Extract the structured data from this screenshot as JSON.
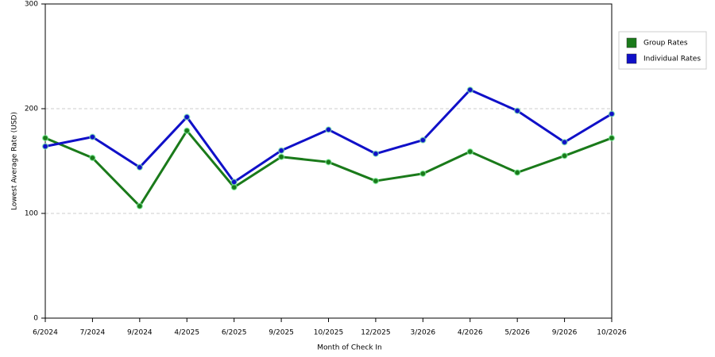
{
  "chart_data": {
    "type": "line",
    "x_label": "Month of Check In",
    "y_label": "Lowest Average Rate (USD)",
    "categories": [
      "6/2024",
      "7/2024",
      "9/2024",
      "4/2025",
      "6/2025",
      "9/2025",
      "10/2025",
      "12/2025",
      "3/2026",
      "4/2026",
      "5/2026",
      "9/2026",
      "10/2026"
    ],
    "series": [
      {
        "name": "Group Rates",
        "color": "#1a7a1a",
        "values": [
          172,
          153,
          107,
          179,
          125,
          154,
          149,
          131,
          138,
          159,
          139,
          155,
          172
        ]
      },
      {
        "name": "Individual Rates",
        "color": "#1010c8",
        "values": [
          164,
          173,
          144,
          192,
          130,
          160,
          180,
          157,
          170,
          218,
          198,
          168,
          195
        ]
      }
    ],
    "ylim": [
      0,
      300
    ],
    "yticks": [
      0,
      100,
      200,
      300
    ],
    "grid": true,
    "legend": "right"
  }
}
